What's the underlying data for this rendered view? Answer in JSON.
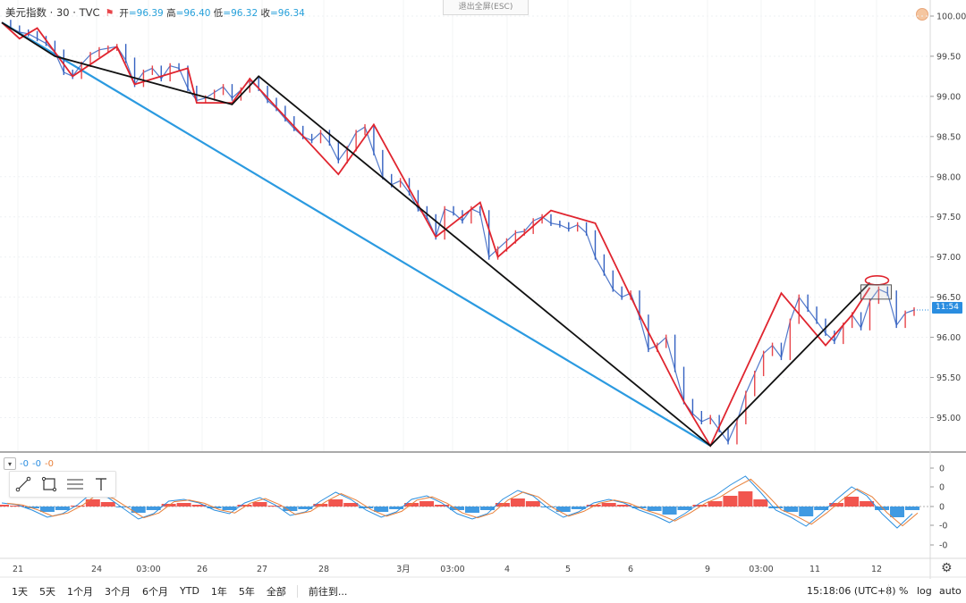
{
  "header": {
    "symbol": "美元指数 · 30 · TVC",
    "open_label": "开",
    "open": "=96.39",
    "high_label": "高",
    "high": "=96.40",
    "low_label": "低",
    "low": "=96.32",
    "close_label": "收",
    "close": "=96.34"
  },
  "esc_button": "退出全屏(ESC)",
  "last_price_tag": "11:54",
  "indicator_values": [
    "-0",
    "-0",
    "-0"
  ],
  "bottom_bar": {
    "ranges": [
      "1天",
      "5天",
      "1个月",
      "3个月",
      "6个月",
      "YTD",
      "1年",
      "5年",
      "全部"
    ],
    "goto": "前往到...",
    "time": "15:18:06 (UTC+8)",
    "percent": "%",
    "log": "log",
    "auto": "auto"
  },
  "chart_data": {
    "type": "line",
    "y_range": [
      94.6,
      100.1
    ],
    "y_ticks": [
      "100.00",
      "99.50",
      "99.00",
      "98.50",
      "98.00",
      "97.50",
      "97.00",
      "96.50",
      "96.00",
      "95.50",
      "95.00"
    ],
    "osc_ticks": [
      "0",
      "0",
      "0",
      "-0",
      "-0"
    ],
    "x_labels": [
      "21",
      "24",
      "03:00",
      "26",
      "27",
      "28",
      "3月",
      "03:00",
      "4",
      "5",
      "6",
      "9",
      "03:00",
      "11",
      "12"
    ],
    "price_series": [
      [
        0,
        99.92
      ],
      [
        1,
        99.85
      ],
      [
        2,
        99.8
      ],
      [
        3,
        99.78
      ],
      [
        4,
        99.72
      ],
      [
        5,
        99.66
      ],
      [
        6,
        99.55
      ],
      [
        7,
        99.3
      ],
      [
        8,
        99.25
      ],
      [
        9,
        99.4
      ],
      [
        10,
        99.52
      ],
      [
        11,
        99.58
      ],
      [
        12,
        99.6
      ],
      [
        13,
        99.62
      ],
      [
        14,
        99.45
      ],
      [
        15,
        99.15
      ],
      [
        16,
        99.3
      ],
      [
        17,
        99.35
      ],
      [
        18,
        99.22
      ],
      [
        19,
        99.38
      ],
      [
        20,
        99.35
      ],
      [
        21,
        99.1
      ],
      [
        22,
        98.95
      ],
      [
        23,
        98.98
      ],
      [
        24,
        99.05
      ],
      [
        25,
        99.12
      ],
      [
        26,
        98.98
      ],
      [
        27,
        99.08
      ],
      [
        28,
        99.2
      ],
      [
        29,
        99.1
      ],
      [
        30,
        98.95
      ],
      [
        31,
        98.85
      ],
      [
        32,
        98.72
      ],
      [
        33,
        98.6
      ],
      [
        34,
        98.5
      ],
      [
        35,
        98.45
      ],
      [
        36,
        98.55
      ],
      [
        37,
        98.42
      ],
      [
        38,
        98.2
      ],
      [
        39,
        98.35
      ],
      [
        40,
        98.55
      ],
      [
        41,
        98.62
      ],
      [
        42,
        98.3
      ],
      [
        43,
        98.0
      ],
      [
        44,
        97.9
      ],
      [
        45,
        97.95
      ],
      [
        46,
        97.8
      ],
      [
        47,
        97.6
      ],
      [
        48,
        97.5
      ],
      [
        49,
        97.25
      ],
      [
        50,
        97.6
      ],
      [
        51,
        97.55
      ],
      [
        52,
        97.45
      ],
      [
        53,
        97.6
      ],
      [
        54,
        97.55
      ],
      [
        55,
        97.0
      ],
      [
        56,
        97.1
      ],
      [
        57,
        97.2
      ],
      [
        58,
        97.3
      ],
      [
        59,
        97.32
      ],
      [
        60,
        97.45
      ],
      [
        61,
        97.5
      ],
      [
        62,
        97.42
      ],
      [
        63,
        97.4
      ],
      [
        64,
        97.35
      ],
      [
        65,
        97.4
      ],
      [
        66,
        97.3
      ],
      [
        67,
        97.0
      ],
      [
        68,
        96.8
      ],
      [
        69,
        96.6
      ],
      [
        70,
        96.5
      ],
      [
        71,
        96.55
      ],
      [
        72,
        96.25
      ],
      [
        73,
        95.85
      ],
      [
        74,
        95.9
      ],
      [
        75,
        96.0
      ],
      [
        76,
        95.6
      ],
      [
        77,
        95.2
      ],
      [
        78,
        95.05
      ],
      [
        79,
        94.95
      ],
      [
        80,
        95.0
      ],
      [
        81,
        94.85
      ],
      [
        82,
        94.7
      ],
      [
        83,
        94.95
      ],
      [
        84,
        95.3
      ],
      [
        85,
        95.55
      ],
      [
        86,
        95.8
      ],
      [
        87,
        95.9
      ],
      [
        88,
        95.75
      ],
      [
        89,
        96.2
      ],
      [
        90,
        96.5
      ],
      [
        91,
        96.35
      ],
      [
        92,
        96.2
      ],
      [
        93,
        96.05
      ],
      [
        94,
        95.95
      ],
      [
        95,
        96.15
      ],
      [
        96,
        96.28
      ],
      [
        97,
        96.12
      ],
      [
        98,
        96.45
      ],
      [
        99,
        96.6
      ],
      [
        100,
        96.55
      ],
      [
        101,
        96.15
      ],
      [
        102,
        96.3
      ],
      [
        103,
        96.34
      ]
    ],
    "zigzag_red": [
      [
        0,
        99.92
      ],
      [
        2,
        99.72
      ],
      [
        4,
        99.85
      ],
      [
        8,
        99.25
      ],
      [
        13,
        99.62
      ],
      [
        15,
        99.15
      ],
      [
        21,
        99.35
      ],
      [
        22,
        98.92
      ],
      [
        26,
        98.92
      ],
      [
        28,
        99.22
      ],
      [
        38,
        98.03
      ],
      [
        42,
        98.65
      ],
      [
        49,
        97.25
      ],
      [
        54,
        97.68
      ],
      [
        56,
        97.0
      ],
      [
        62,
        97.58
      ],
      [
        67,
        97.42
      ],
      [
        72,
        96.28
      ],
      [
        77,
        95.2
      ],
      [
        80,
        94.65
      ],
      [
        88,
        96.55
      ],
      [
        93,
        95.9
      ],
      [
        96,
        96.28
      ],
      [
        98,
        96.62
      ]
    ],
    "zigzag_black": [
      [
        0,
        99.92
      ],
      [
        6,
        99.5
      ],
      [
        26,
        98.9
      ],
      [
        29,
        99.25
      ],
      [
        80,
        94.65
      ],
      [
        98,
        96.68
      ]
    ],
    "trend_blue": [
      [
        0,
        99.92
      ],
      [
        80,
        94.65
      ]
    ],
    "osc_hist": [
      0.1,
      0.05,
      -0.1,
      -0.3,
      -0.2,
      0.05,
      0.4,
      0.25,
      -0.05,
      -0.35,
      -0.2,
      0.15,
      0.2,
      0.1,
      -0.1,
      -0.2,
      0.1,
      0.25,
      0.05,
      -0.25,
      -0.15,
      0.15,
      0.4,
      0.2,
      -0.1,
      -0.3,
      -0.15,
      0.2,
      0.3,
      0.1,
      -0.2,
      -0.35,
      -0.2,
      0.2,
      0.45,
      0.3,
      -0.05,
      -0.3,
      -0.15,
      0.1,
      0.2,
      0.1,
      -0.1,
      -0.25,
      -0.45,
      -0.2,
      0.1,
      0.3,
      0.6,
      0.85,
      0.4,
      -0.1,
      -0.3,
      -0.55,
      -0.2,
      0.2,
      0.55,
      0.3,
      -0.2,
      -0.6,
      -0.2
    ]
  }
}
